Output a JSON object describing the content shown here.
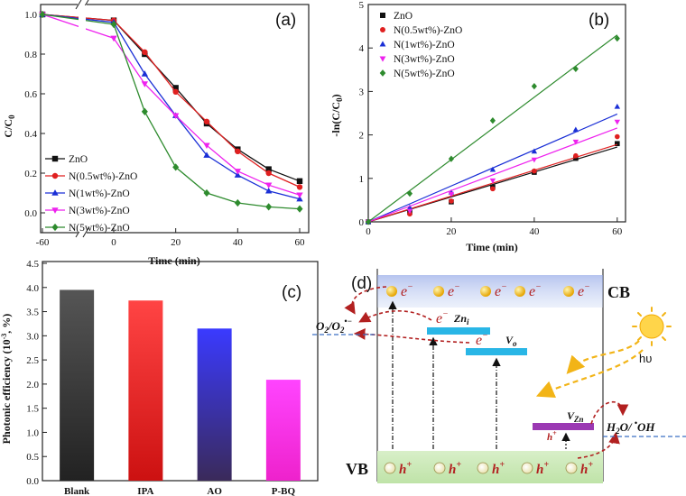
{
  "chart_data": [
    {
      "panel": "(a)",
      "type": "line",
      "xlabel": "Time (min)",
      "ylabel": "C/C0",
      "ylabel_main": "C/C",
      "ylabel_sub": "0",
      "x": [
        -60,
        0,
        10,
        20,
        30,
        40,
        50,
        60
      ],
      "x_ticks": [
        "-60",
        "0",
        "20",
        "40",
        "60"
      ],
      "y_ticks": [
        "0.0",
        "0.2",
        "0.4",
        "0.6",
        "0.8",
        "1.0"
      ],
      "ylim": [
        -0.1,
        1.05
      ],
      "series": [
        {
          "name": "ZnO",
          "color": "#111111",
          "marker": "square",
          "values": [
            1.0,
            0.97,
            0.8,
            0.63,
            0.45,
            0.32,
            0.22,
            0.16
          ]
        },
        {
          "name": "N(0.5wt%)-ZnO",
          "color": "#e02020",
          "marker": "circle",
          "values": [
            1.0,
            0.97,
            0.81,
            0.61,
            0.46,
            0.31,
            0.2,
            0.13
          ]
        },
        {
          "name": "N(1wt%)-ZnO",
          "color": "#1a2fd6",
          "marker": "triangle",
          "values": [
            1.0,
            0.96,
            0.7,
            0.49,
            0.29,
            0.19,
            0.11,
            0.07
          ]
        },
        {
          "name": "N(3wt%)-ZnO",
          "color": "#ee22ee",
          "marker": "triangle-down",
          "values": [
            1.0,
            0.88,
            0.65,
            0.49,
            0.34,
            0.21,
            0.14,
            0.09
          ]
        },
        {
          "name": "N(5wt%)-ZnO",
          "color": "#2e8b2e",
          "marker": "diamond",
          "values": [
            1.0,
            0.95,
            0.51,
            0.23,
            0.1,
            0.05,
            0.03,
            0.02
          ]
        }
      ]
    },
    {
      "panel": "(b)",
      "type": "scatter",
      "xlabel": "Time (min)",
      "ylabel": "-ln(C/C0)",
      "ylabel_main": "-ln(C/C",
      "ylabel_sub": "0",
      "ylabel_end": ")",
      "x": [
        0,
        10,
        20,
        30,
        40,
        50,
        60
      ],
      "x_ticks": [
        "0",
        "20",
        "40",
        "60"
      ],
      "y_ticks": [
        "0",
        "1",
        "2",
        "3",
        "4",
        "5"
      ],
      "xlim": [
        0,
        62
      ],
      "ylim": [
        0,
        5
      ],
      "series": [
        {
          "name": "ZnO",
          "color": "#111111",
          "marker": "square",
          "values": [
            0,
            0.22,
            0.46,
            0.8,
            1.14,
            1.46,
            1.8
          ],
          "fit_end": 1.72
        },
        {
          "name": "N(0.5wt%)-ZnO",
          "color": "#e02020",
          "marker": "circle",
          "values": [
            0,
            0.18,
            0.48,
            0.76,
            1.17,
            1.52,
            1.96
          ],
          "fit_end": 1.78
        },
        {
          "name": "N(1wt%)-ZnO",
          "color": "#1a2fd6",
          "marker": "triangle",
          "values": [
            0,
            0.33,
            0.68,
            1.2,
            1.62,
            2.12,
            2.65
          ],
          "fit_end": 2.48
        },
        {
          "name": "N(3wt%)-ZnO",
          "color": "#ee22ee",
          "marker": "triangle-down",
          "values": [
            0,
            0.25,
            0.64,
            0.95,
            1.43,
            1.84,
            2.3
          ],
          "fit_end": 2.16
        },
        {
          "name": "N(5wt%)-ZnO",
          "color": "#2e8b2e",
          "marker": "diamond",
          "values": [
            0,
            0.65,
            1.45,
            2.33,
            3.12,
            3.52,
            4.22
          ],
          "fit_end": 4.3
        }
      ]
    },
    {
      "panel": "(c)",
      "type": "bar",
      "ylabel": "Photonic efficiency (10-3, %)",
      "ylabel_main": "Photonic efficiency (10",
      "ylabel_sup": "-3",
      "ylabel_end": ", %)",
      "categories": [
        "Blank",
        "IPA",
        "AO",
        "P-BQ"
      ],
      "values": [
        3.95,
        3.73,
        3.15,
        2.09
      ],
      "colors": [
        [
          "#555555",
          "#222222"
        ],
        [
          "#ff4444",
          "#cc1111"
        ],
        [
          "#3a3aff",
          "#3a2a5a"
        ],
        [
          "#ff44ff",
          "#ee22cc"
        ]
      ],
      "y_ticks": [
        "0.0",
        "0.5",
        "1.0",
        "1.5",
        "2.0",
        "2.5",
        "3.0",
        "3.5",
        "4.0",
        "4.5"
      ],
      "ylim": [
        0,
        4.5
      ]
    }
  ],
  "diagram": {
    "panel": "(d)",
    "cb_label": "CB",
    "vb_label": "VB",
    "electron": "e",
    "electron_sup": "−",
    "hole": "h",
    "hole_sup": "+",
    "zn_i_main": "Zn",
    "zn_i_sub": "i",
    "v_o_main": "V",
    "v_o_sub": "o",
    "v_zn_main": "V",
    "v_zn_sub": "Zn",
    "o2_label": "O2/O2•−",
    "o2_main": "O",
    "o2_sub": "2",
    "o2_sep": "/O",
    "o2_sub2": "2",
    "o2_sup": "•−",
    "h2o_label": "H2O/ •OH",
    "h2o_main": "H",
    "h2o_sub": "2",
    "h2o_rest": "O/ ",
    "oh_dot": "•",
    "oh": "OH",
    "light_label": "hυ"
  }
}
